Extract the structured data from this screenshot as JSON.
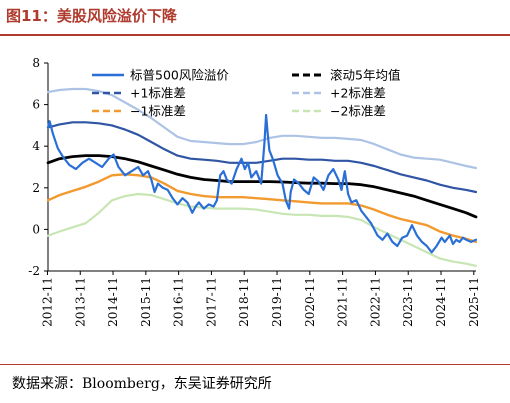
{
  "header": {
    "title": "图11：美股风险溢价下降"
  },
  "footer": {
    "source": "数据来源：Bloomberg，东吴证券研究所"
  },
  "colors": {
    "erp": "#2a6fd6",
    "mean": "#000000",
    "plus1": "#2f55a4",
    "plus2": "#adc3e6",
    "minus1": "#f29a2e",
    "minus2": "#c7e6b4",
    "title": "#b03a2e"
  },
  "chart_data": {
    "type": "line",
    "title": "",
    "xlabel": "",
    "ylabel": "",
    "ylim": [
      -2,
      8
    ],
    "yticks": [
      -2,
      0,
      2,
      4,
      6,
      8
    ],
    "xlim": [
      2012.85,
      2025.9
    ],
    "xticks": [
      "2012-11",
      "2013-11",
      "2014-11",
      "2015-11",
      "2016-11",
      "2017-11",
      "2018-11",
      "2019-11",
      "2020-11",
      "2021-11",
      "2022-11",
      "2023-11",
      "2024-11",
      "2025-11"
    ],
    "grid": false,
    "legend": "top, two columns",
    "series": [
      {
        "name": "标普500风险溢价",
        "style": "solid",
        "x": [
          2012.85,
          2012.9,
          2013.0,
          2013.15,
          2013.3,
          2013.5,
          2013.7,
          2013.9,
          2014.1,
          2014.3,
          2014.5,
          2014.7,
          2014.85,
          2015.0,
          2015.2,
          2015.4,
          2015.6,
          2015.75,
          2015.9,
          2016.0,
          2016.1,
          2016.2,
          2016.35,
          2016.5,
          2016.65,
          2016.8,
          2016.95,
          2017.1,
          2017.25,
          2017.35,
          2017.45,
          2017.6,
          2017.75,
          2017.9,
          2018.0,
          2018.1,
          2018.2,
          2018.3,
          2018.45,
          2018.6,
          2018.75,
          2018.85,
          2018.95,
          2019.05,
          2019.2,
          2019.35,
          2019.45,
          2019.5,
          2019.55,
          2019.6,
          2019.7,
          2019.85,
          2020.0,
          2020.1,
          2020.2,
          2020.25,
          2020.35,
          2020.5,
          2020.65,
          2020.8,
          2020.95,
          2021.1,
          2021.25,
          2021.4,
          2021.55,
          2021.7,
          2021.8,
          2021.9,
          2022.0,
          2022.1,
          2022.25,
          2022.4,
          2022.55,
          2022.7,
          2022.8,
          2022.9,
          2023.05,
          2023.2,
          2023.35,
          2023.5,
          2023.65,
          2023.8,
          2023.95,
          2024.1,
          2024.25,
          2024.4,
          2024.55,
          2024.7,
          2024.85,
          2024.95,
          2025.1,
          2025.2,
          2025.3,
          2025.4,
          2025.5,
          2025.6,
          2025.75,
          2025.9
        ],
        "y": [
          4.9,
          5.2,
          4.6,
          3.9,
          3.5,
          3.1,
          2.9,
          3.2,
          3.4,
          3.2,
          3.0,
          3.4,
          3.6,
          3.0,
          2.6,
          2.8,
          3.0,
          2.6,
          2.8,
          2.4,
          1.8,
          2.2,
          2.0,
          1.9,
          1.5,
          1.2,
          1.5,
          1.3,
          0.8,
          1.1,
          1.3,
          1.0,
          1.2,
          1.1,
          1.4,
          2.6,
          2.8,
          2.4,
          2.2,
          2.9,
          3.4,
          2.9,
          3.2,
          2.5,
          2.8,
          2.2,
          4.2,
          5.5,
          4.6,
          3.8,
          3.4,
          2.6,
          2.2,
          1.4,
          1.0,
          1.8,
          2.4,
          2.2,
          1.9,
          1.7,
          2.5,
          2.3,
          1.9,
          2.6,
          2.9,
          2.4,
          1.9,
          2.8,
          1.7,
          1.3,
          1.4,
          0.9,
          0.6,
          0.3,
          0.0,
          -0.3,
          -0.5,
          -0.2,
          -0.6,
          -0.8,
          -0.4,
          -0.3,
          0.2,
          -0.3,
          -0.6,
          -0.8,
          -1.1,
          -0.8,
          -0.4,
          -0.6,
          -0.3,
          -0.7,
          -0.5,
          -0.6,
          -0.4,
          -0.5,
          -0.6,
          -0.5
        ]
      },
      {
        "name": "滚动5年均值",
        "style": "dash",
        "x": [
          2012.85,
          2013.2,
          2013.6,
          2014.0,
          2014.4,
          2014.8,
          2015.2,
          2015.6,
          2016.0,
          2016.4,
          2016.8,
          2017.2,
          2017.6,
          2018.0,
          2018.4,
          2018.8,
          2019.2,
          2019.6,
          2020.0,
          2020.4,
          2020.8,
          2021.2,
          2021.6,
          2022.0,
          2022.4,
          2022.8,
          2023.2,
          2023.6,
          2024.0,
          2024.4,
          2024.8,
          2025.2,
          2025.6,
          2025.9
        ],
        "y": [
          3.2,
          3.4,
          3.5,
          3.55,
          3.55,
          3.5,
          3.4,
          3.25,
          3.05,
          2.85,
          2.65,
          2.5,
          2.4,
          2.35,
          2.3,
          2.3,
          2.3,
          2.3,
          2.28,
          2.25,
          2.22,
          2.22,
          2.2,
          2.2,
          2.15,
          2.05,
          1.9,
          1.75,
          1.6,
          1.4,
          1.2,
          1.0,
          0.8,
          0.6
        ]
      },
      {
        "name": "+1标准差",
        "style": "dash",
        "x": [
          2012.85,
          2013.2,
          2013.6,
          2014.0,
          2014.4,
          2014.8,
          2015.2,
          2015.6,
          2016.0,
          2016.4,
          2016.8,
          2017.2,
          2017.6,
          2018.0,
          2018.4,
          2018.8,
          2019.2,
          2019.6,
          2020.0,
          2020.4,
          2020.8,
          2021.2,
          2021.6,
          2022.0,
          2022.4,
          2022.8,
          2023.2,
          2023.6,
          2024.0,
          2024.4,
          2024.8,
          2025.2,
          2025.6,
          2025.9
        ],
        "y": [
          4.9,
          5.05,
          5.15,
          5.15,
          5.1,
          5.0,
          4.8,
          4.55,
          4.2,
          3.85,
          3.55,
          3.4,
          3.35,
          3.3,
          3.2,
          3.2,
          3.2,
          3.3,
          3.4,
          3.4,
          3.35,
          3.35,
          3.3,
          3.3,
          3.2,
          3.05,
          2.85,
          2.65,
          2.5,
          2.35,
          2.15,
          2.0,
          1.9,
          1.8
        ]
      },
      {
        "name": "+2标准差",
        "style": "dash",
        "x": [
          2012.85,
          2013.2,
          2013.6,
          2014.0,
          2014.4,
          2014.8,
          2015.2,
          2015.6,
          2016.0,
          2016.4,
          2016.8,
          2017.2,
          2017.6,
          2018.0,
          2018.4,
          2018.8,
          2019.2,
          2019.6,
          2020.0,
          2020.4,
          2020.8,
          2021.2,
          2021.6,
          2022.0,
          2022.4,
          2022.8,
          2023.2,
          2023.6,
          2024.0,
          2024.4,
          2024.8,
          2025.2,
          2025.6,
          2025.9
        ],
        "y": [
          6.6,
          6.7,
          6.75,
          6.75,
          6.65,
          6.45,
          6.1,
          5.75,
          5.35,
          4.9,
          4.45,
          4.25,
          4.2,
          4.15,
          4.1,
          4.1,
          4.2,
          4.4,
          4.5,
          4.5,
          4.45,
          4.4,
          4.4,
          4.35,
          4.3,
          4.1,
          3.85,
          3.6,
          3.45,
          3.4,
          3.35,
          3.2,
          3.05,
          2.95
        ]
      },
      {
        "name": "−1标准差",
        "style": "dash",
        "x": [
          2012.85,
          2013.2,
          2013.6,
          2014.0,
          2014.4,
          2014.8,
          2015.2,
          2015.6,
          2016.0,
          2016.4,
          2016.8,
          2017.2,
          2017.6,
          2018.0,
          2018.4,
          2018.8,
          2019.2,
          2019.6,
          2020.0,
          2020.4,
          2020.8,
          2021.2,
          2021.6,
          2022.0,
          2022.4,
          2022.8,
          2023.2,
          2023.6,
          2024.0,
          2024.4,
          2024.8,
          2025.2,
          2025.6,
          2025.9
        ],
        "y": [
          1.4,
          1.65,
          1.85,
          2.05,
          2.3,
          2.6,
          2.65,
          2.6,
          2.5,
          2.2,
          1.85,
          1.7,
          1.6,
          1.55,
          1.55,
          1.55,
          1.5,
          1.45,
          1.4,
          1.35,
          1.3,
          1.25,
          1.25,
          1.25,
          1.15,
          0.95,
          0.7,
          0.5,
          0.35,
          0.2,
          -0.1,
          -0.3,
          -0.45,
          -0.6
        ]
      },
      {
        "name": "−2标准差",
        "style": "dash",
        "x": [
          2012.85,
          2013.2,
          2013.6,
          2014.0,
          2014.4,
          2014.8,
          2015.2,
          2015.6,
          2016.0,
          2016.4,
          2016.8,
          2017.2,
          2017.6,
          2018.0,
          2018.4,
          2018.8,
          2019.2,
          2019.6,
          2020.0,
          2020.4,
          2020.8,
          2021.2,
          2021.6,
          2022.0,
          2022.4,
          2022.8,
          2023.2,
          2023.6,
          2024.0,
          2024.4,
          2024.8,
          2025.2,
          2025.6,
          2025.9
        ],
        "y": [
          -0.3,
          -0.1,
          0.1,
          0.3,
          0.8,
          1.4,
          1.6,
          1.7,
          1.65,
          1.45,
          1.25,
          1.1,
          1.05,
          1.0,
          1.0,
          1.0,
          0.95,
          0.85,
          0.75,
          0.7,
          0.7,
          0.65,
          0.65,
          0.6,
          0.45,
          0.1,
          -0.2,
          -0.5,
          -0.8,
          -1.1,
          -1.4,
          -1.55,
          -1.65,
          -1.75
        ]
      }
    ]
  }
}
